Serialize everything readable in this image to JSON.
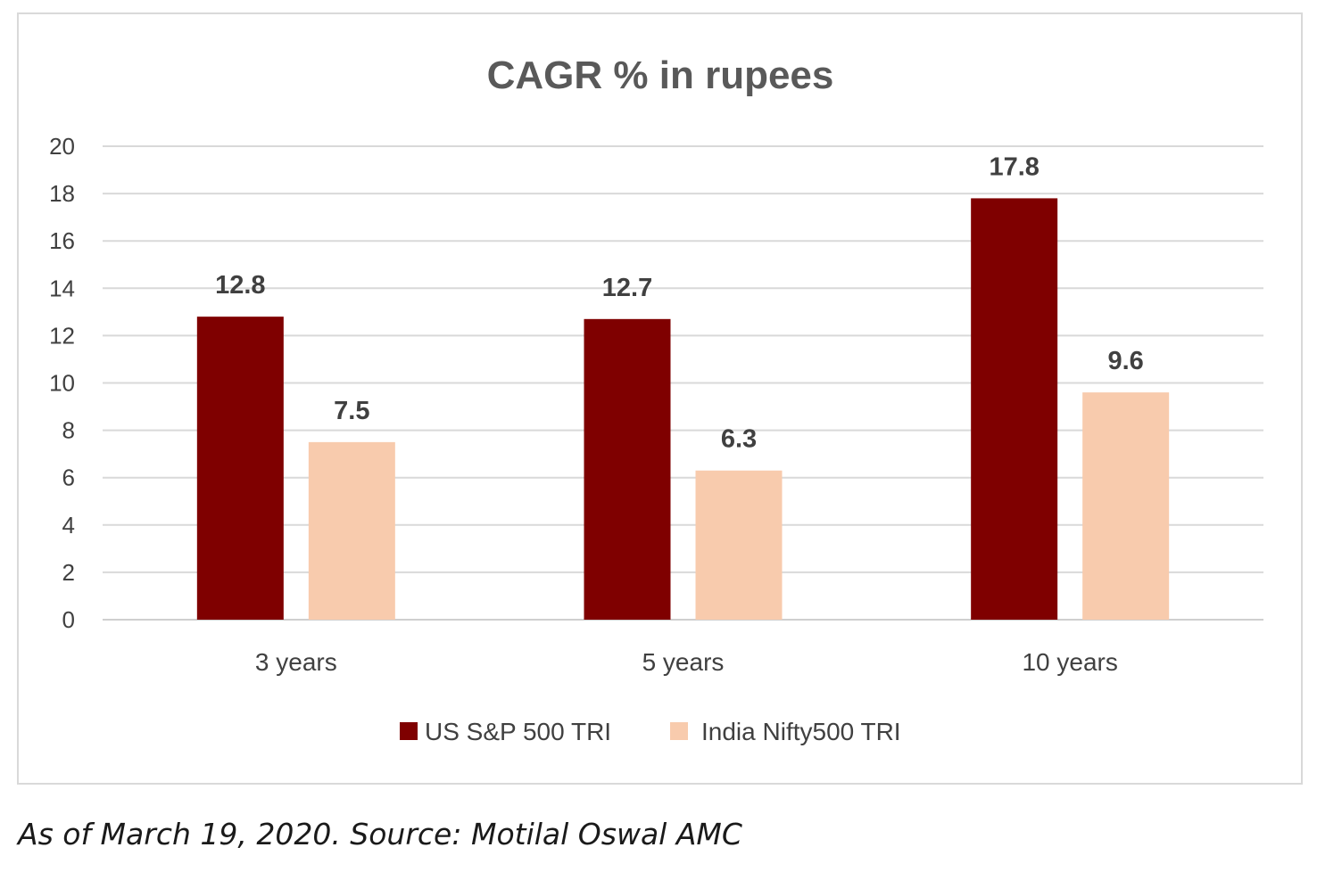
{
  "chart_data": {
    "type": "bar",
    "title": "CAGR % in rupees",
    "categories": [
      "3 years",
      "5 years",
      "10 years"
    ],
    "series": [
      {
        "name": "US S&P 500 TRI",
        "values": [
          12.8,
          12.7,
          17.8
        ],
        "color": "#7f0000"
      },
      {
        "name": "India Nifty500 TRI",
        "values": [
          7.5,
          6.3,
          9.6
        ],
        "color": "#f8cbad"
      }
    ],
    "ylim": [
      0,
      20
    ],
    "yticks": [
      0,
      2,
      4,
      6,
      8,
      10,
      12,
      14,
      16,
      18,
      20
    ],
    "grid": true,
    "legend": "bottom",
    "data_labels": true
  },
  "footnote": "As of March 19, 2020. Source: Motilal Oswal AMC"
}
